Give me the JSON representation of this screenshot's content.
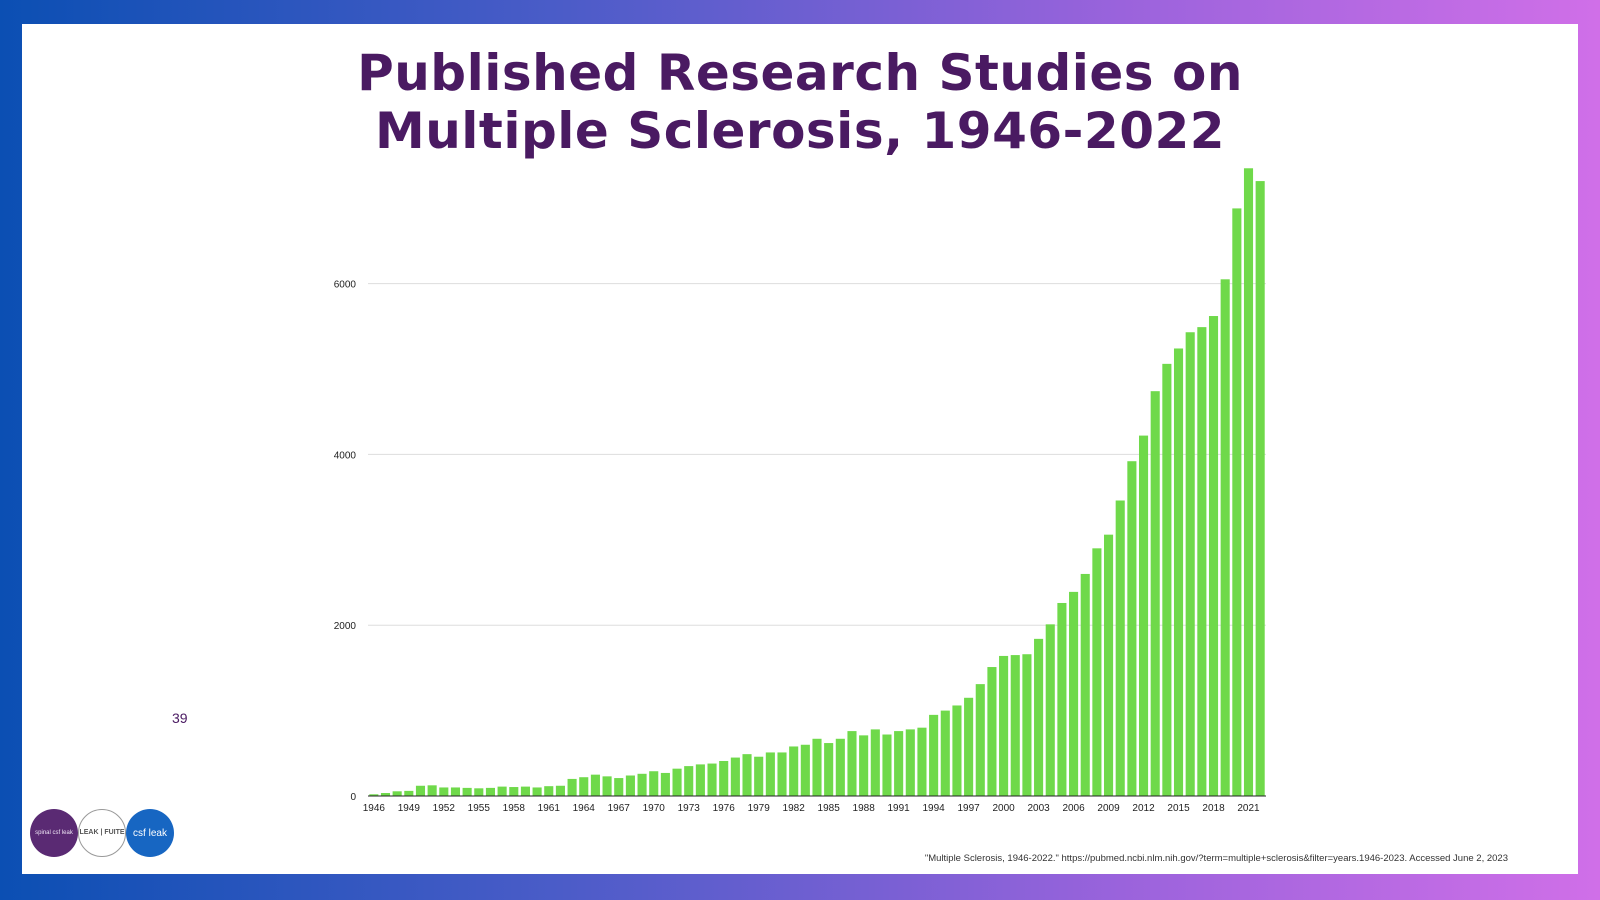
{
  "title_lines": [
    "Published Research Studies on",
    "Multiple Sclerosis, 1946-2022"
  ],
  "page_number": "39",
  "source": "\"Multiple Sclerosis, 1946-2022.\" https://pubmed.ncbi.nlm.nih.gov/?term=multiple+sclerosis&filter=years.1946-2023. Accessed June 2, 2023",
  "logos": {
    "logo1_text": "spinal csf leak",
    "logo2_text": "LEAK | FUITE",
    "logo3_text": "csf leak"
  },
  "colors": {
    "bar": "#6fd94a",
    "title": "#4a1a62",
    "grid": "#dddddd",
    "axis": "#222222"
  },
  "chart_data": {
    "type": "bar",
    "title": "Published Research Studies on Multiple Sclerosis, 1946-2022",
    "xlabel": "",
    "ylabel": "",
    "ylim": [
      0,
      7400
    ],
    "yticks": [
      0,
      2000,
      4000,
      6000
    ],
    "grid": true,
    "x_tick_labels": [
      "1946",
      "1949",
      "1952",
      "1955",
      "1958",
      "1961",
      "1964",
      "1967",
      "1970",
      "1973",
      "1976",
      "1979",
      "1982",
      "1985",
      "1988",
      "1991",
      "1994",
      "1997",
      "2000",
      "2003",
      "2006",
      "2009",
      "2012",
      "2015",
      "2018",
      "2021"
    ],
    "categories": [
      "1946",
      "1947",
      "1948",
      "1949",
      "1950",
      "1951",
      "1952",
      "1953",
      "1954",
      "1955",
      "1956",
      "1957",
      "1958",
      "1959",
      "1960",
      "1961",
      "1962",
      "1963",
      "1964",
      "1965",
      "1966",
      "1967",
      "1968",
      "1969",
      "1970",
      "1971",
      "1972",
      "1973",
      "1974",
      "1975",
      "1976",
      "1977",
      "1978",
      "1979",
      "1980",
      "1981",
      "1982",
      "1983",
      "1984",
      "1985",
      "1986",
      "1987",
      "1988",
      "1989",
      "1990",
      "1991",
      "1992",
      "1993",
      "1994",
      "1995",
      "1996",
      "1997",
      "1998",
      "1999",
      "2000",
      "2001",
      "2002",
      "2003",
      "2004",
      "2005",
      "2006",
      "2007",
      "2008",
      "2009",
      "2010",
      "2011",
      "2012",
      "2013",
      "2014",
      "2015",
      "2016",
      "2017",
      "2018",
      "2019",
      "2020",
      "2021",
      "2022"
    ],
    "values": [
      20,
      35,
      55,
      60,
      120,
      125,
      100,
      100,
      95,
      90,
      95,
      110,
      105,
      110,
      100,
      115,
      120,
      200,
      220,
      250,
      230,
      210,
      240,
      260,
      290,
      270,
      320,
      350,
      370,
      380,
      410,
      450,
      490,
      460,
      510,
      510,
      580,
      600,
      670,
      620,
      670,
      760,
      710,
      780,
      720,
      760,
      780,
      800,
      950,
      1000,
      1060,
      1150,
      1310,
      1510,
      1640,
      1650,
      1660,
      1840,
      2010,
      2260,
      2390,
      2600,
      2900,
      3060,
      3460,
      3920,
      4220,
      4740,
      5060,
      5240,
      5430,
      5490,
      5620,
      6050,
      6880,
      7350,
      7200
    ]
  }
}
